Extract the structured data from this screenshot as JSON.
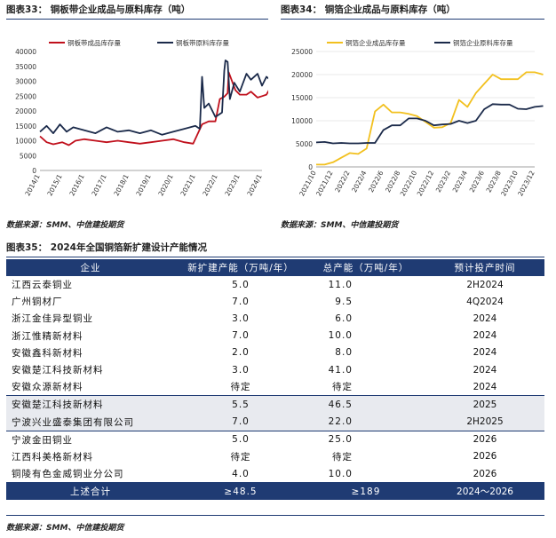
{
  "fig33": {
    "title": "图表33：  铜板带企业成品与原料库存（吨）",
    "chart_data": {
      "type": "line",
      "title": "",
      "x_ticks": [
        "2014/1",
        "2015/1",
        "2016/1",
        "2017/1",
        "2018/1",
        "2019/1",
        "2020/1",
        "2021/1",
        "2022/1",
        "2023/1",
        "2024/1"
      ],
      "ylim": [
        0,
        40000
      ],
      "y_ticks": [
        "0",
        "5000",
        "10000",
        "15000",
        "20000",
        "25000",
        "30000",
        "35000",
        "40000"
      ],
      "series": [
        {
          "name": "铜板带成品库存量",
          "color": "#c0101c",
          "points": [
            [
              0,
              11500
            ],
            [
              0.3,
              9500
            ],
            [
              0.6,
              8800
            ],
            [
              1,
              9500
            ],
            [
              1.3,
              8500
            ],
            [
              1.6,
              10000
            ],
            [
              2,
              10500
            ],
            [
              2.5,
              10000
            ],
            [
              3,
              9500
            ],
            [
              3.5,
              10000
            ],
            [
              4,
              9500
            ],
            [
              4.5,
              9000
            ],
            [
              5,
              9500
            ],
            [
              5.5,
              10000
            ],
            [
              6,
              10500
            ],
            [
              6.5,
              9500
            ],
            [
              6.9,
              9000
            ],
            [
              7.3,
              15500
            ],
            [
              7.6,
              16500
            ],
            [
              7.9,
              16500
            ],
            [
              8.1,
              24000
            ],
            [
              8.3,
              24800
            ],
            [
              8.45,
              26000
            ],
            [
              8.5,
              33000
            ],
            [
              8.6,
              31000
            ],
            [
              8.8,
              27000
            ],
            [
              9,
              25500
            ],
            [
              9.3,
              25500
            ],
            [
              9.5,
              26500
            ],
            [
              9.8,
              24500
            ],
            [
              10,
              25000
            ],
            [
              10.2,
              25500
            ],
            [
              10.35,
              27500
            ]
          ]
        },
        {
          "name": "铜板带原料库存量",
          "color": "#1b2a4a",
          "points": [
            [
              0,
              13000
            ],
            [
              0.3,
              15000
            ],
            [
              0.6,
              12500
            ],
            [
              0.9,
              15500
            ],
            [
              1.2,
              13000
            ],
            [
              1.5,
              14500
            ],
            [
              2,
              13500
            ],
            [
              2.5,
              12500
            ],
            [
              3,
              14500
            ],
            [
              3.5,
              13000
            ],
            [
              4,
              13500
            ],
            [
              4.5,
              12500
            ],
            [
              5,
              13500
            ],
            [
              5.5,
              12000
            ],
            [
              6,
              13000
            ],
            [
              6.5,
              14000
            ],
            [
              7,
              15000
            ],
            [
              7.2,
              14000
            ],
            [
              7.3,
              31500
            ],
            [
              7.4,
              21000
            ],
            [
              7.6,
              22500
            ],
            [
              7.9,
              18000
            ],
            [
              8.2,
              19500
            ],
            [
              8.3,
              33500
            ],
            [
              8.35,
              37000
            ],
            [
              8.45,
              36500
            ],
            [
              8.55,
              24000
            ],
            [
              8.75,
              29500
            ],
            [
              9,
              26500
            ],
            [
              9.3,
              32500
            ],
            [
              9.5,
              30500
            ],
            [
              9.8,
              32500
            ],
            [
              10,
              28500
            ],
            [
              10.2,
              31500
            ],
            [
              10.35,
              30500
            ]
          ]
        }
      ]
    }
  },
  "fig34": {
    "title": "图表34：  铜箔企业成品与原料库存（吨）",
    "chart_data": {
      "type": "line",
      "title": "",
      "x_ticks": [
        "2021/10",
        "2021/12",
        "2022/2",
        "2022/4",
        "2022/6",
        "2022/8",
        "2022/10",
        "2022/12",
        "2023/2",
        "2023/4",
        "2023/6",
        "2023/8",
        "2023/10",
        "2023/12"
      ],
      "ylim": [
        0,
        25000
      ],
      "y_ticks": [
        "0",
        "5000",
        "10000",
        "15000",
        "20000",
        "25000"
      ],
      "series": [
        {
          "name": "铜箔企业成品库存量",
          "color": "#f2c01e",
          "points": [
            [
              0,
              500
            ],
            [
              0.5,
              500
            ],
            [
              1,
              1000
            ],
            [
              1.5,
              2000
            ],
            [
              2,
              3000
            ],
            [
              2.5,
              2800
            ],
            [
              3,
              4000
            ],
            [
              3.5,
              12000
            ],
            [
              4,
              13500
            ],
            [
              4.5,
              11800
            ],
            [
              5,
              11800
            ],
            [
              5.5,
              11500
            ],
            [
              6,
              11000
            ],
            [
              7,
              8500
            ],
            [
              7.5,
              8600
            ],
            [
              8,
              9500
            ],
            [
              8.5,
              14500
            ],
            [
              9,
              13000
            ],
            [
              9.5,
              16000
            ],
            [
              10,
              18000
            ],
            [
              10.5,
              20000
            ],
            [
              11,
              19000
            ],
            [
              11.5,
              19000
            ],
            [
              12,
              19000
            ],
            [
              12.5,
              20500
            ],
            [
              13,
              20500
            ],
            [
              13.5,
              20000
            ]
          ]
        },
        {
          "name": "铜箔企业原料库存量",
          "color": "#1b2a4a",
          "points": [
            [
              0,
              5300
            ],
            [
              0.5,
              5400
            ],
            [
              1,
              5100
            ],
            [
              1.5,
              5200
            ],
            [
              2,
              5100
            ],
            [
              2.5,
              5100
            ],
            [
              3,
              5200
            ],
            [
              3.5,
              5200
            ],
            [
              4,
              8000
            ],
            [
              4.5,
              9000
            ],
            [
              5,
              9000
            ],
            [
              5.5,
              10500
            ],
            [
              6,
              10500
            ],
            [
              6.5,
              10000
            ],
            [
              7,
              9000
            ],
            [
              7.5,
              9200
            ],
            [
              8,
              9300
            ],
            [
              8.5,
              10000
            ],
            [
              9,
              9500
            ],
            [
              9.5,
              10000
            ],
            [
              10,
              12500
            ],
            [
              10.5,
              13600
            ],
            [
              11,
              13500
            ],
            [
              11.5,
              13500
            ],
            [
              12,
              12600
            ],
            [
              12.5,
              12500
            ],
            [
              13,
              13000
            ],
            [
              13.5,
              13200
            ]
          ]
        }
      ]
    }
  },
  "source_text": "数据来源：SMM、中信建投期货",
  "fig35": {
    "title": "图表35：  2024年全国铜箔新扩建设计产能情况",
    "headers": [
      "企业",
      "新扩建产能（万吨/年）",
      "总产能（万吨/年）",
      "预计投产时间"
    ],
    "rows": [
      {
        "company": "江西云泰铜业",
        "new_cap": "5.0",
        "total_cap": "11.0",
        "time": "2H2024",
        "shade": false
      },
      {
        "company": "广州铜材厂",
        "new_cap": "7.0",
        "total_cap": "9.5",
        "time": "4Q2024",
        "shade": false
      },
      {
        "company": "浙江金佳异型铜业",
        "new_cap": "3.0",
        "total_cap": "6.0",
        "time": "2024",
        "shade": false
      },
      {
        "company": "浙江惟精新材料",
        "new_cap": "7.0",
        "total_cap": "10.0",
        "time": "2024",
        "shade": false
      },
      {
        "company": "安徽鑫科新材料",
        "new_cap": "2.0",
        "total_cap": "8.0",
        "time": "2024",
        "shade": false
      },
      {
        "company": "安徽楚江科技新材料",
        "new_cap": "3.0",
        "total_cap": "41.0",
        "time": "2024",
        "shade": false
      },
      {
        "company": "安徽众源新材料",
        "new_cap": "待定",
        "total_cap": "待定",
        "time": "2024",
        "shade": false
      },
      {
        "company": "安徽楚江科技新材料",
        "new_cap": "5.5",
        "total_cap": "46.5",
        "time": "2025",
        "shade": true
      },
      {
        "company": "宁波兴业盛泰集团有限公司",
        "new_cap": "7.0",
        "total_cap": "22.0",
        "time": "2H2025",
        "shade": true
      },
      {
        "company": "宁波金田铜业",
        "new_cap": "5.0",
        "total_cap": "25.0",
        "time": "2026",
        "shade": false
      },
      {
        "company": "江西科美格新材料",
        "new_cap": "待定",
        "total_cap": "待定",
        "time": "2026",
        "shade": false
      },
      {
        "company": "铜陵有色金威铜业分公司",
        "new_cap": "4.0",
        "total_cap": "10.0",
        "time": "2026",
        "shade": false
      }
    ],
    "total": {
      "label": "上述合计",
      "new_cap": "≥48.5",
      "total_cap": "≥189",
      "time": "2024～2026"
    }
  }
}
